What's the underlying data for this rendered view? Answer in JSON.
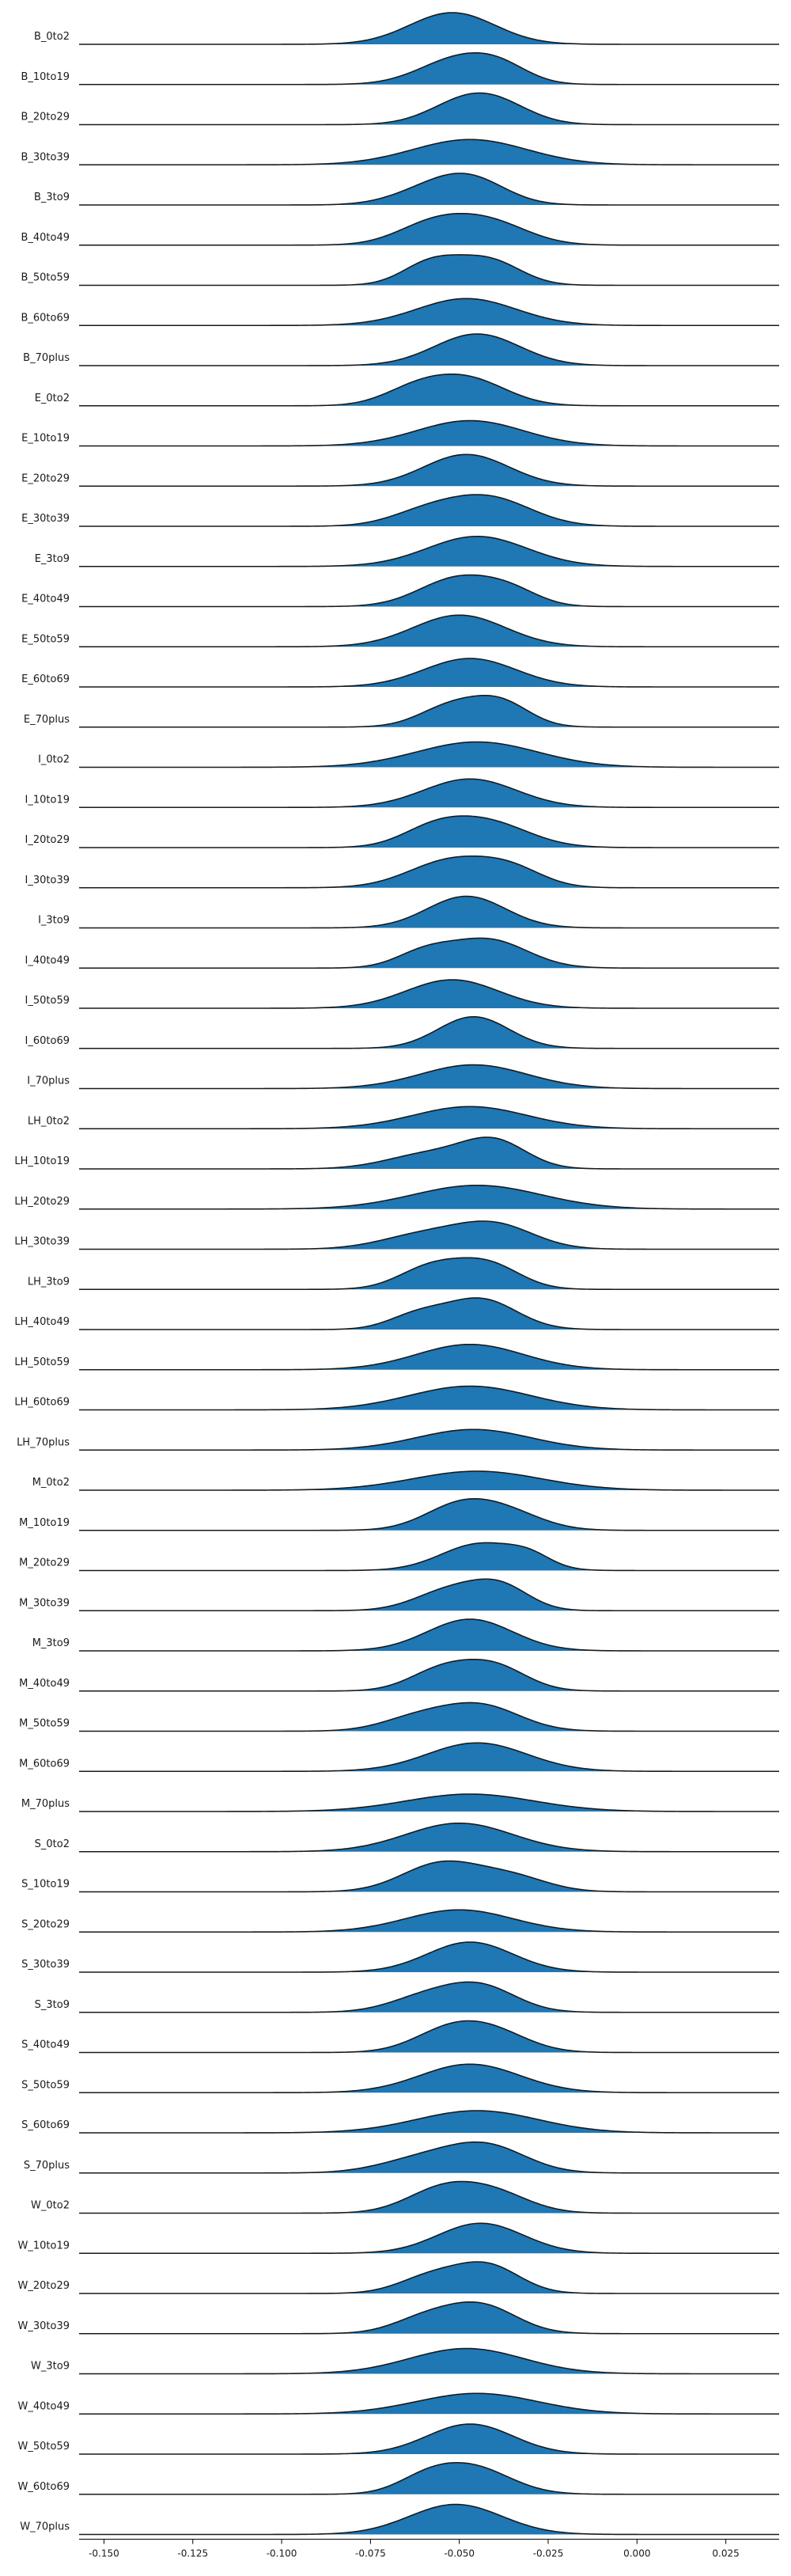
{
  "chart_data": {
    "type": "ridgeline",
    "title": "",
    "xlabel": "",
    "ylabel": "",
    "xlim": [
      -0.157,
      0.04
    ],
    "xticks": [
      -0.15,
      -0.125,
      -0.1,
      -0.075,
      -0.05,
      -0.025,
      0.0,
      0.025
    ],
    "xtick_labels": [
      "-0.150",
      "-0.125",
      "-0.100",
      "-0.075",
      "-0.050",
      "-0.025",
      "0.000",
      "0.025"
    ],
    "grid": false,
    "colors": {
      "fill": "#1f77b4",
      "line": "#1a1a1a",
      "axis": "#000000"
    },
    "series": [
      {
        "name": "B_0to2",
        "peaks": [
          {
            "c": -0.052,
            "s": 0.012,
            "a": 1.0
          }
        ]
      },
      {
        "name": "B_10to19",
        "peaks": [
          {
            "c": -0.05,
            "s": 0.011,
            "a": 1.0
          },
          {
            "c": -0.038,
            "s": 0.008,
            "a": 0.45
          }
        ]
      },
      {
        "name": "B_20to29",
        "peaks": [
          {
            "c": -0.05,
            "s": 0.01,
            "a": 0.7
          },
          {
            "c": -0.04,
            "s": 0.01,
            "a": 0.85
          }
        ]
      },
      {
        "name": "B_30to39",
        "peaks": [
          {
            "c": -0.047,
            "s": 0.016,
            "a": 0.8
          }
        ]
      },
      {
        "name": "B_3to9",
        "peaks": [
          {
            "c": -0.047,
            "s": 0.01,
            "a": 1.0
          },
          {
            "c": -0.06,
            "s": 0.01,
            "a": 0.45
          }
        ]
      },
      {
        "name": "B_40to49",
        "peaks": [
          {
            "c": -0.058,
            "s": 0.01,
            "a": 0.7
          },
          {
            "c": -0.042,
            "s": 0.011,
            "a": 0.85
          }
        ]
      },
      {
        "name": "B_50to59",
        "peaks": [
          {
            "c": -0.058,
            "s": 0.008,
            "a": 0.7
          },
          {
            "c": -0.042,
            "s": 0.009,
            "a": 0.8
          }
        ]
      },
      {
        "name": "B_60to69",
        "peaks": [
          {
            "c": -0.048,
            "s": 0.014,
            "a": 0.85
          }
        ]
      },
      {
        "name": "B_70plus",
        "peaks": [
          {
            "c": -0.045,
            "s": 0.012,
            "a": 1.0
          }
        ]
      },
      {
        "name": "E_0to2",
        "peaks": [
          {
            "c": -0.048,
            "s": 0.011,
            "a": 1.0
          },
          {
            "c": -0.063,
            "s": 0.009,
            "a": 0.5
          }
        ]
      },
      {
        "name": "E_10to19",
        "peaks": [
          {
            "c": -0.047,
            "s": 0.015,
            "a": 0.8
          }
        ]
      },
      {
        "name": "E_20to29",
        "peaks": [
          {
            "c": -0.048,
            "s": 0.012,
            "a": 1.0
          }
        ]
      },
      {
        "name": "E_30to39",
        "peaks": [
          {
            "c": -0.042,
            "s": 0.012,
            "a": 0.95
          },
          {
            "c": -0.06,
            "s": 0.01,
            "a": 0.4
          }
        ]
      },
      {
        "name": "E_3to9",
        "peaks": [
          {
            "c": -0.045,
            "s": 0.014,
            "a": 0.95
          }
        ]
      },
      {
        "name": "E_40to49",
        "peaks": [
          {
            "c": -0.05,
            "s": 0.011,
            "a": 1.0
          },
          {
            "c": -0.035,
            "s": 0.008,
            "a": 0.4
          }
        ]
      },
      {
        "name": "E_50to59",
        "peaks": [
          {
            "c": -0.05,
            "s": 0.013,
            "a": 1.0
          }
        ]
      },
      {
        "name": "E_60to69",
        "peaks": [
          {
            "c": -0.047,
            "s": 0.013,
            "a": 0.9
          }
        ]
      },
      {
        "name": "E_70plus",
        "peaks": [
          {
            "c": -0.052,
            "s": 0.009,
            "a": 0.8
          },
          {
            "c": -0.038,
            "s": 0.008,
            "a": 0.85
          }
        ]
      },
      {
        "name": "I_0to2",
        "peaks": [
          {
            "c": -0.045,
            "s": 0.017,
            "a": 0.8
          }
        ]
      },
      {
        "name": "I_10to19",
        "peaks": [
          {
            "c": -0.047,
            "s": 0.013,
            "a": 0.9
          }
        ]
      },
      {
        "name": "I_20to29",
        "peaks": [
          {
            "c": -0.043,
            "s": 0.012,
            "a": 0.85
          },
          {
            "c": -0.058,
            "s": 0.009,
            "a": 0.45
          }
        ]
      },
      {
        "name": "I_30to39",
        "peaks": [
          {
            "c": -0.052,
            "s": 0.012,
            "a": 0.9
          },
          {
            "c": -0.035,
            "s": 0.009,
            "a": 0.5
          }
        ]
      },
      {
        "name": "I_3to9",
        "peaks": [
          {
            "c": -0.048,
            "s": 0.011,
            "a": 1.0
          }
        ]
      },
      {
        "name": "I_40to49",
        "peaks": [
          {
            "c": -0.042,
            "s": 0.011,
            "a": 0.9
          },
          {
            "c": -0.06,
            "s": 0.008,
            "a": 0.45
          }
        ]
      },
      {
        "name": "I_50to59",
        "peaks": [
          {
            "c": -0.052,
            "s": 0.013,
            "a": 0.9
          }
        ]
      },
      {
        "name": "I_60to69",
        "peaks": [
          {
            "c": -0.046,
            "s": 0.01,
            "a": 1.0
          }
        ]
      },
      {
        "name": "I_70plus",
        "peaks": [
          {
            "c": -0.046,
            "s": 0.015,
            "a": 0.75
          }
        ]
      },
      {
        "name": "LH_0to2",
        "peaks": [
          {
            "c": -0.047,
            "s": 0.016,
            "a": 0.7
          }
        ]
      },
      {
        "name": "LH_10to19",
        "peaks": [
          {
            "c": -0.04,
            "s": 0.009,
            "a": 0.85
          },
          {
            "c": -0.058,
            "s": 0.012,
            "a": 0.5
          }
        ]
      },
      {
        "name": "LH_20to29",
        "peaks": [
          {
            "c": -0.045,
            "s": 0.018,
            "a": 0.75
          }
        ]
      },
      {
        "name": "LH_30to39",
        "peaks": [
          {
            "c": -0.04,
            "s": 0.011,
            "a": 0.75
          },
          {
            "c": -0.06,
            "s": 0.012,
            "a": 0.45
          }
        ]
      },
      {
        "name": "LH_3to9",
        "peaks": [
          {
            "c": -0.058,
            "s": 0.009,
            "a": 0.75
          },
          {
            "c": -0.042,
            "s": 0.009,
            "a": 0.85
          }
        ]
      },
      {
        "name": "LH_40to49",
        "peaks": [
          {
            "c": -0.044,
            "s": 0.01,
            "a": 1.0
          },
          {
            "c": -0.062,
            "s": 0.008,
            "a": 0.45
          }
        ]
      },
      {
        "name": "LH_50to59",
        "peaks": [
          {
            "c": -0.047,
            "s": 0.015,
            "a": 0.8
          }
        ]
      },
      {
        "name": "LH_60to69",
        "peaks": [
          {
            "c": -0.047,
            "s": 0.017,
            "a": 0.75
          }
        ]
      },
      {
        "name": "LH_70plus",
        "peaks": [
          {
            "c": -0.046,
            "s": 0.016,
            "a": 0.65
          }
        ]
      },
      {
        "name": "M_0to2",
        "peaks": [
          {
            "c": -0.045,
            "s": 0.018,
            "a": 0.6
          }
        ]
      },
      {
        "name": "M_10to19",
        "peaks": [
          {
            "c": -0.05,
            "s": 0.01,
            "a": 0.85
          },
          {
            "c": -0.036,
            "s": 0.01,
            "a": 0.55
          }
        ]
      },
      {
        "name": "M_20to29",
        "peaks": [
          {
            "c": -0.044,
            "s": 0.011,
            "a": 0.85
          },
          {
            "c": -0.03,
            "s": 0.006,
            "a": 0.3
          }
        ]
      },
      {
        "name": "M_30to39",
        "peaks": [
          {
            "c": -0.052,
            "s": 0.01,
            "a": 0.7
          },
          {
            "c": -0.038,
            "s": 0.008,
            "a": 0.7
          }
        ]
      },
      {
        "name": "M_3to9",
        "peaks": [
          {
            "c": -0.047,
            "s": 0.012,
            "a": 1.0
          }
        ]
      },
      {
        "name": "M_40to49",
        "peaks": [
          {
            "c": -0.055,
            "s": 0.009,
            "a": 0.7
          },
          {
            "c": -0.04,
            "s": 0.009,
            "a": 0.8
          }
        ]
      },
      {
        "name": "M_50to59",
        "peaks": [
          {
            "c": -0.044,
            "s": 0.011,
            "a": 0.8
          },
          {
            "c": -0.062,
            "s": 0.01,
            "a": 0.4
          }
        ]
      },
      {
        "name": "M_60to69",
        "peaks": [
          {
            "c": -0.045,
            "s": 0.014,
            "a": 0.9
          }
        ]
      },
      {
        "name": "M_70plus",
        "peaks": [
          {
            "c": -0.047,
            "s": 0.018,
            "a": 0.55
          }
        ]
      },
      {
        "name": "S_0to2",
        "peaks": [
          {
            "c": -0.05,
            "s": 0.015,
            "a": 0.9
          }
        ]
      },
      {
        "name": "S_10to19",
        "peaks": [
          {
            "c": -0.055,
            "s": 0.011,
            "a": 0.9
          },
          {
            "c": -0.035,
            "s": 0.01,
            "a": 0.45
          }
        ]
      },
      {
        "name": "S_20to29",
        "peaks": [
          {
            "c": -0.05,
            "s": 0.015,
            "a": 0.7
          }
        ]
      },
      {
        "name": "S_30to39",
        "peaks": [
          {
            "c": -0.047,
            "s": 0.012,
            "a": 0.95
          }
        ]
      },
      {
        "name": "S_3to9",
        "peaks": [
          {
            "c": -0.044,
            "s": 0.01,
            "a": 0.8
          },
          {
            "c": -0.06,
            "s": 0.01,
            "a": 0.45
          }
        ]
      },
      {
        "name": "S_40to49",
        "peaks": [
          {
            "c": -0.053,
            "s": 0.01,
            "a": 0.7
          },
          {
            "c": -0.04,
            "s": 0.01,
            "a": 0.6
          }
        ]
      },
      {
        "name": "S_50to59",
        "peaks": [
          {
            "c": -0.047,
            "s": 0.014,
            "a": 0.9
          }
        ]
      },
      {
        "name": "S_60to69",
        "peaks": [
          {
            "c": -0.045,
            "s": 0.017,
            "a": 0.7
          }
        ]
      },
      {
        "name": "S_70plus",
        "peaks": [
          {
            "c": -0.042,
            "s": 0.011,
            "a": 0.8
          },
          {
            "c": -0.06,
            "s": 0.012,
            "a": 0.45
          }
        ]
      },
      {
        "name": "W_0to2",
        "peaks": [
          {
            "c": -0.055,
            "s": 0.01,
            "a": 0.8
          },
          {
            "c": -0.04,
            "s": 0.01,
            "a": 0.65
          }
        ]
      },
      {
        "name": "W_10to19",
        "peaks": [
          {
            "c": -0.044,
            "s": 0.012,
            "a": 0.95
          }
        ]
      },
      {
        "name": "W_20to29",
        "peaks": [
          {
            "c": -0.042,
            "s": 0.009,
            "a": 0.9
          },
          {
            "c": -0.058,
            "s": 0.009,
            "a": 0.55
          }
        ]
      },
      {
        "name": "W_30to39",
        "peaks": [
          {
            "c": -0.044,
            "s": 0.01,
            "a": 0.9
          },
          {
            "c": -0.06,
            "s": 0.009,
            "a": 0.45
          }
        ]
      },
      {
        "name": "W_3to9",
        "peaks": [
          {
            "c": -0.048,
            "s": 0.016,
            "a": 0.8
          }
        ]
      },
      {
        "name": "W_40to49",
        "peaks": [
          {
            "c": -0.045,
            "s": 0.017,
            "a": 0.65
          }
        ]
      },
      {
        "name": "W_50to59",
        "peaks": [
          {
            "c": -0.047,
            "s": 0.012,
            "a": 0.95
          }
        ]
      },
      {
        "name": "W_60to69",
        "peaks": [
          {
            "c": -0.047,
            "s": 0.011,
            "a": 0.9
          },
          {
            "c": -0.06,
            "s": 0.008,
            "a": 0.35
          }
        ]
      },
      {
        "name": "W_70plus",
        "peaks": [
          {
            "c": -0.051,
            "s": 0.013,
            "a": 0.95
          }
        ]
      }
    ]
  }
}
